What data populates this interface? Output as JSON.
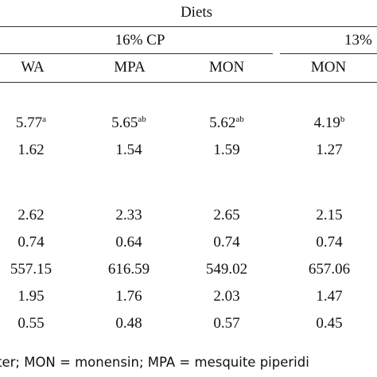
{
  "table": {
    "spanner": "Diets",
    "groups": [
      "16% CP",
      "13%"
    ],
    "columns": [
      "WA",
      "MPA",
      "MON",
      "MON"
    ],
    "rows": [
      [
        {
          "v": "5.77",
          "s": "a"
        },
        {
          "v": "5.65",
          "s": "ab"
        },
        {
          "v": "5.62",
          "s": "ab"
        },
        {
          "v": "4.19",
          "s": "b"
        }
      ],
      [
        {
          "v": "1.62",
          "s": ""
        },
        {
          "v": "1.54",
          "s": ""
        },
        {
          "v": "1.59",
          "s": ""
        },
        {
          "v": "1.27",
          "s": ""
        }
      ],
      [
        {
          "v": "2.62",
          "s": ""
        },
        {
          "v": "2.33",
          "s": ""
        },
        {
          "v": "2.65",
          "s": ""
        },
        {
          "v": "2.15",
          "s": ""
        }
      ],
      [
        {
          "v": "0.74",
          "s": ""
        },
        {
          "v": "0.64",
          "s": ""
        },
        {
          "v": "0.74",
          "s": ""
        },
        {
          "v": "0.74",
          "s": ""
        }
      ],
      [
        {
          "v": "557.15",
          "s": ""
        },
        {
          "v": "616.59",
          "s": ""
        },
        {
          "v": "549.02",
          "s": ""
        },
        {
          "v": "657.06",
          "s": ""
        }
      ],
      [
        {
          "v": "1.95",
          "s": ""
        },
        {
          "v": "1.76",
          "s": ""
        },
        {
          "v": "2.03",
          "s": ""
        },
        {
          "v": "1.47",
          "s": ""
        }
      ],
      [
        {
          "v": "0.55",
          "s": ""
        },
        {
          "v": "0.48",
          "s": ""
        },
        {
          "v": "0.57",
          "s": ""
        },
        {
          "v": "0.45",
          "s": ""
        }
      ]
    ],
    "footnote": "ter; MON = monensin; MPA = mesquite piperidi"
  }
}
